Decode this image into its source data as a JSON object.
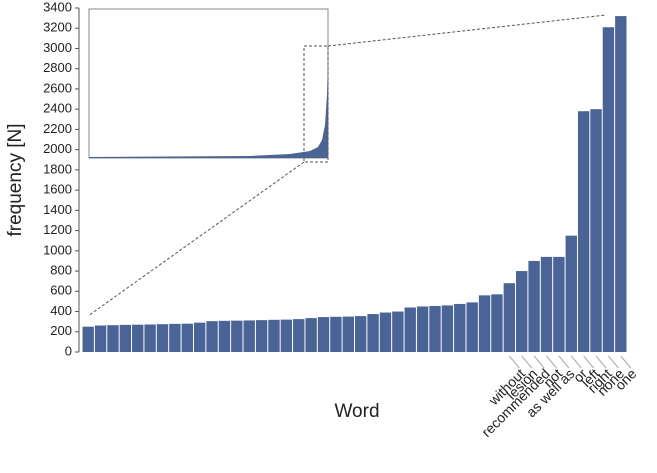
{
  "chart_data": {
    "type": "bar",
    "y_label": "frequency [N]",
    "x_label": "Word",
    "categories": [
      null,
      null,
      null,
      null,
      null,
      null,
      null,
      null,
      null,
      null,
      null,
      null,
      null,
      null,
      null,
      null,
      null,
      null,
      null,
      null,
      null,
      null,
      null,
      null,
      null,
      null,
      null,
      null,
      null,
      null,
      null,
      null,
      null,
      null,
      "without",
      "lesion",
      "recommended",
      "not",
      "as well as",
      "or",
      "left",
      "right",
      "none",
      "one"
    ],
    "values": [
      250,
      262,
      265,
      268,
      270,
      272,
      275,
      278,
      280,
      290,
      305,
      308,
      310,
      312,
      315,
      318,
      320,
      325,
      335,
      345,
      348,
      350,
      355,
      375,
      390,
      400,
      440,
      450,
      455,
      460,
      475,
      490,
      560,
      570,
      680,
      800,
      900,
      940,
      940,
      1150,
      2380,
      2400,
      3210,
      3320
    ],
    "color": "#4a6595",
    "ylim": [
      0,
      3400
    ],
    "yticks": [
      0,
      200,
      400,
      600,
      800,
      1000,
      1200,
      1400,
      1600,
      1800,
      2000,
      2200,
      2400,
      2600,
      2800,
      3000,
      3200,
      3400
    ]
  }
}
